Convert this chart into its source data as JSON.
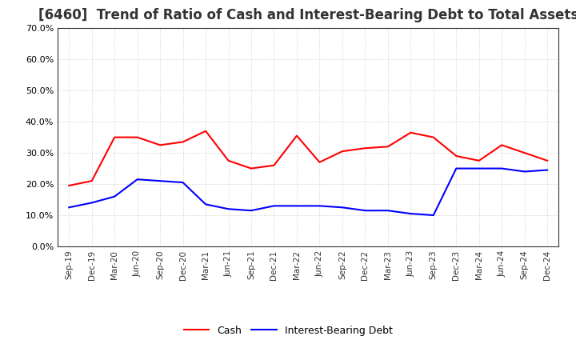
{
  "title": "[6460]  Trend of Ratio of Cash and Interest-Bearing Debt to Total Assets",
  "labels": [
    "Sep-19",
    "Dec-19",
    "Mar-20",
    "Jun-20",
    "Sep-20",
    "Dec-20",
    "Mar-21",
    "Jun-21",
    "Sep-21",
    "Dec-21",
    "Mar-22",
    "Jun-22",
    "Sep-22",
    "Dec-22",
    "Mar-23",
    "Jun-23",
    "Sep-23",
    "Dec-23",
    "Mar-24",
    "Jun-24",
    "Sep-24",
    "Dec-24"
  ],
  "cash": [
    19.5,
    21.0,
    35.0,
    35.0,
    32.5,
    33.5,
    37.0,
    27.5,
    25.0,
    26.0,
    35.5,
    27.0,
    30.5,
    31.5,
    32.0,
    36.5,
    35.0,
    29.0,
    27.5,
    32.5,
    30.0,
    27.5
  ],
  "interest_bearing_debt": [
    12.5,
    14.0,
    16.0,
    21.5,
    21.0,
    20.5,
    13.5,
    12.0,
    11.5,
    13.0,
    13.0,
    13.0,
    12.5,
    11.5,
    11.5,
    10.5,
    10.0,
    25.0,
    25.0,
    25.0,
    24.0,
    24.5
  ],
  "cash_color": "#ff0000",
  "debt_color": "#0000ff",
  "ylim": [
    0,
    70
  ],
  "yticks": [
    0,
    10,
    20,
    30,
    40,
    50,
    60,
    70
  ],
  "background_color": "#ffffff",
  "grid_color": "#bbbbbb",
  "title_fontsize": 12,
  "legend_cash": "Cash",
  "legend_debt": "Interest-Bearing Debt"
}
